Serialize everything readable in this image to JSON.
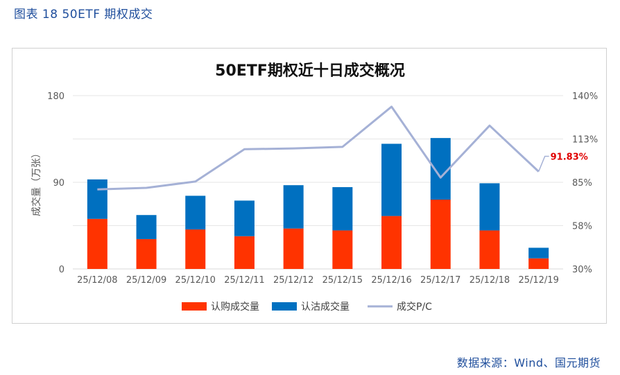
{
  "header": {
    "figure_label": "图表 18 50ETF 期权成交"
  },
  "footer": {
    "source": "数据来源：Wind、国元期货"
  },
  "chart_data": {
    "type": "bar",
    "stacked": true,
    "title": "50ETF期权近十日成交概况",
    "ylabel": "成交量（万张）",
    "ylim": [
      0,
      180
    ],
    "y_ticks": [
      "0",
      "90",
      "180"
    ],
    "y2lim": [
      30,
      140
    ],
    "y2_ticks": [
      "30%",
      "58%",
      "85%",
      "113%",
      "140%"
    ],
    "categories": [
      "25/12/08",
      "25/12/09",
      "25/12/10",
      "25/12/11",
      "25/12/12",
      "25/12/15",
      "25/12/16",
      "25/12/17",
      "25/12/18",
      "25/12/19"
    ],
    "series": [
      {
        "name": "认购成交量",
        "kind": "bar",
        "axis": "left",
        "color": "#ff3300",
        "values": [
          52,
          31,
          41,
          34,
          42,
          40,
          55,
          72,
          40,
          11
        ]
      },
      {
        "name": "认沽成交量",
        "kind": "bar",
        "axis": "left",
        "color": "#0070c0",
        "values": [
          41,
          25,
          35,
          37,
          45,
          45,
          75,
          64,
          49,
          11
        ]
      },
      {
        "name": "成交P/C",
        "kind": "line",
        "axis": "right",
        "color": "#a5b1d6",
        "values": [
          80.5,
          81.5,
          85.5,
          106,
          106.5,
          107.5,
          133,
          88,
          121,
          91.83
        ]
      }
    ],
    "annotation": {
      "text": "91.83%",
      "color": "#e00000"
    },
    "legend_position": "bottom",
    "grid": "horizontal"
  }
}
